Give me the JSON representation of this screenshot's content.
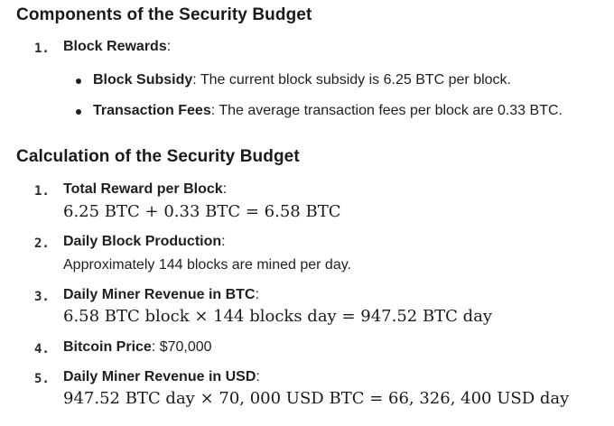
{
  "section1": {
    "heading": "Components of the Security Budget",
    "item1": {
      "number": "1.",
      "title": "Block Rewards",
      "colon": ":"
    },
    "bullets": [
      {
        "term": "Block Subsidy",
        "text": ": The current block subsidy is 6.25 BTC per block."
      },
      {
        "term": "Transaction Fees",
        "text": ": The average transaction fees per block are 0.33 BTC."
      }
    ]
  },
  "section2": {
    "heading": "Calculation of the Security Budget",
    "items": [
      {
        "number": "1.",
        "title": "Total Reward per Block",
        "suffix": ":",
        "formula": "6.25 BTC + 0.33 BTC = 6.58 BTC"
      },
      {
        "number": "2.",
        "title": "Daily Block Production",
        "suffix": ":",
        "text": "Approximately 144 blocks are mined per day."
      },
      {
        "number": "3.",
        "title": "Daily Miner Revenue in BTC",
        "suffix": ":",
        "formula": "6.58 BTC block × 144 blocks day = 947.52 BTC day"
      },
      {
        "number": "4.",
        "title": "Bitcoin Price",
        "suffix": ": $70,000"
      },
      {
        "number": "5.",
        "title": "Daily Miner Revenue in USD",
        "suffix": ":",
        "formula": "947.52 BTC day × 70, 000 USD BTC = 66, 326, 400 USD day"
      }
    ]
  }
}
